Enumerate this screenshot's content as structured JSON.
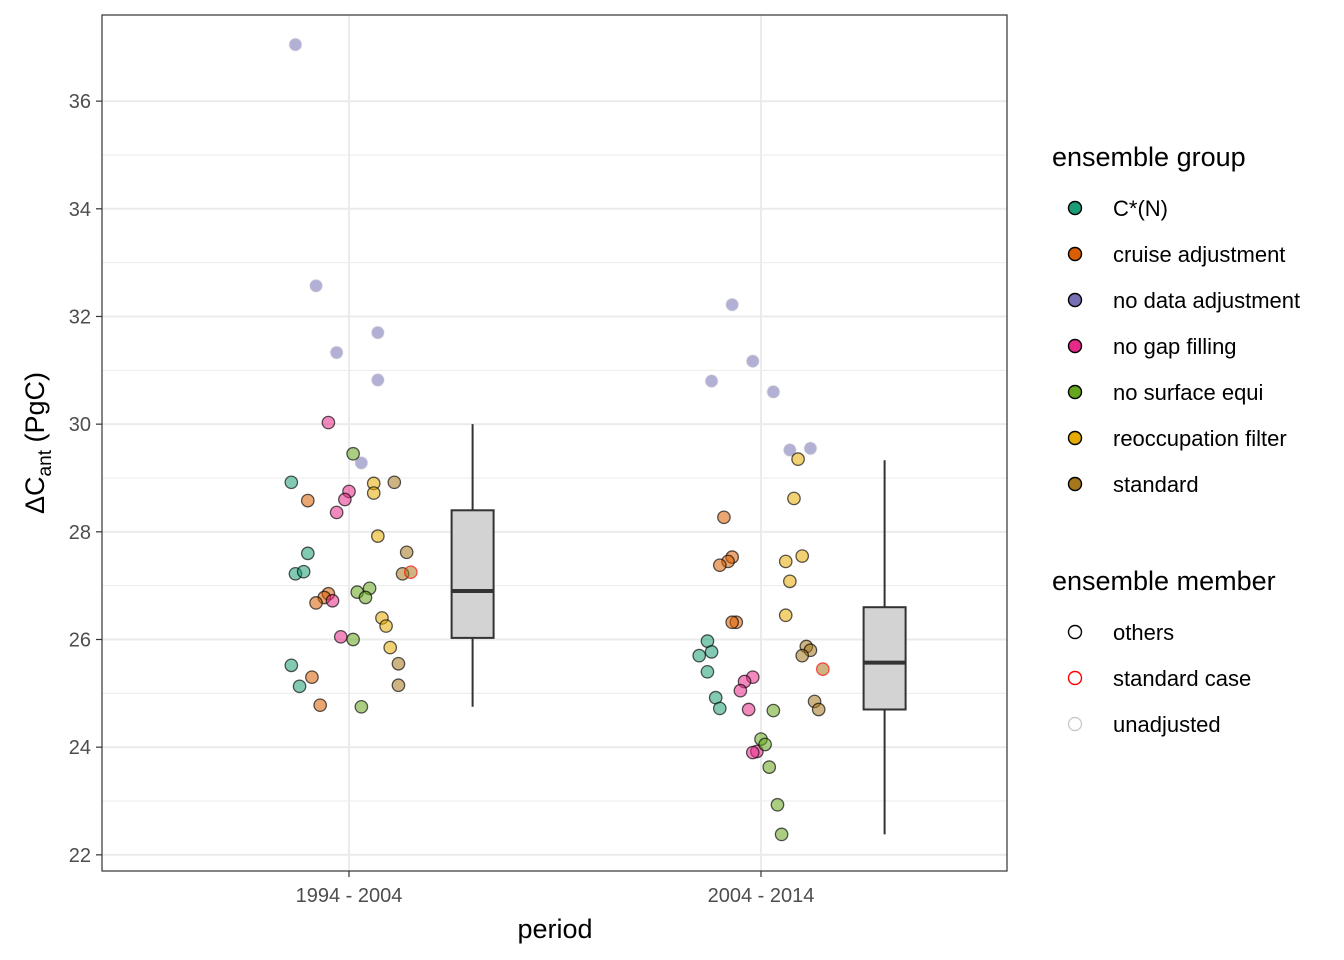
{
  "chart_data": {
    "type": "scatter",
    "xlabel": "period",
    "ylabel": {
      "prefix": "ΔC",
      "subscript": "ant",
      "suffix": " (PgC)"
    },
    "ylim": [
      21.7,
      37.6
    ],
    "yticks": [
      22,
      24,
      26,
      28,
      30,
      32,
      34,
      36
    ],
    "categories": [
      "1994 - 2004",
      "2004 - 2014"
    ],
    "legend_group": {
      "title": "ensemble group",
      "items": [
        {
          "key": "cstar",
          "label": "C*(N)",
          "color": "#1b9e77"
        },
        {
          "key": "cruise",
          "label": "cruise adjustment",
          "color": "#d95f02"
        },
        {
          "key": "nodata",
          "label": "no data adjustment",
          "color": "#7570b3"
        },
        {
          "key": "nogap",
          "label": "no gap filling",
          "color": "#e7298a"
        },
        {
          "key": "nosurf",
          "label": "no surface equi",
          "color": "#66a61e"
        },
        {
          "key": "reocc",
          "label": "reoccupation filter",
          "color": "#e6ab02"
        },
        {
          "key": "standard",
          "label": "standard",
          "color": "#a6761d"
        }
      ]
    },
    "legend_member": {
      "title": "ensemble member",
      "items": [
        {
          "key": "others",
          "label": "others",
          "color": "#000000"
        },
        {
          "key": "standard_case",
          "label": "standard case",
          "color": "#ff0000"
        },
        {
          "key": "unadjusted",
          "label": "unadjusted",
          "color": "#cccccc"
        }
      ]
    },
    "boxplots": [
      {
        "period": "1994 - 2004",
        "min": 24.75,
        "q1": 26.03,
        "median": 26.9,
        "q3": 28.4,
        "max": 30.0
      },
      {
        "period": "2004 - 2014",
        "min": 22.38,
        "q1": 24.7,
        "median": 25.57,
        "q3": 26.6,
        "max": 29.33
      }
    ],
    "points": [
      {
        "period": 0,
        "jitter": -0.14,
        "y": 28.92,
        "group": "cstar",
        "member": "others"
      },
      {
        "period": 0,
        "jitter": -0.1,
        "y": 27.6,
        "group": "cstar",
        "member": "others"
      },
      {
        "period": 0,
        "jitter": -0.13,
        "y": 27.22,
        "group": "cstar",
        "member": "others"
      },
      {
        "period": 0,
        "jitter": -0.11,
        "y": 27.26,
        "group": "cstar",
        "member": "others"
      },
      {
        "period": 0,
        "jitter": -0.14,
        "y": 25.52,
        "group": "cstar",
        "member": "others"
      },
      {
        "period": 0,
        "jitter": -0.12,
        "y": 25.13,
        "group": "cstar",
        "member": "others"
      },
      {
        "period": 0,
        "jitter": -0.1,
        "y": 28.58,
        "group": "cruise",
        "member": "others"
      },
      {
        "period": 0,
        "jitter": -0.05,
        "y": 26.85,
        "group": "cruise",
        "member": "others"
      },
      {
        "period": 0,
        "jitter": -0.06,
        "y": 26.78,
        "group": "cruise",
        "member": "others"
      },
      {
        "period": 0,
        "jitter": -0.08,
        "y": 26.68,
        "group": "cruise",
        "member": "others"
      },
      {
        "period": 0,
        "jitter": -0.09,
        "y": 25.3,
        "group": "cruise",
        "member": "others"
      },
      {
        "period": 0,
        "jitter": -0.07,
        "y": 24.78,
        "group": "cruise",
        "member": "others"
      },
      {
        "period": 0,
        "jitter": -0.13,
        "y": 37.05,
        "group": "nodata",
        "member": "unadjusted"
      },
      {
        "period": 0,
        "jitter": -0.08,
        "y": 32.57,
        "group": "nodata",
        "member": "unadjusted"
      },
      {
        "period": 0,
        "jitter": -0.03,
        "y": 31.33,
        "group": "nodata",
        "member": "unadjusted"
      },
      {
        "period": 0,
        "jitter": 0.07,
        "y": 31.7,
        "group": "nodata",
        "member": "unadjusted"
      },
      {
        "period": 0,
        "jitter": 0.07,
        "y": 30.82,
        "group": "nodata",
        "member": "unadjusted"
      },
      {
        "period": 0,
        "jitter": 0.03,
        "y": 29.28,
        "group": "nodata",
        "member": "unadjusted"
      },
      {
        "period": 0,
        "jitter": -0.05,
        "y": 30.03,
        "group": "nogap",
        "member": "others"
      },
      {
        "period": 0,
        "jitter": 0.0,
        "y": 28.75,
        "group": "nogap",
        "member": "others"
      },
      {
        "period": 0,
        "jitter": -0.01,
        "y": 28.6,
        "group": "nogap",
        "member": "others"
      },
      {
        "period": 0,
        "jitter": -0.03,
        "y": 28.36,
        "group": "nogap",
        "member": "others"
      },
      {
        "period": 0,
        "jitter": -0.04,
        "y": 26.72,
        "group": "nogap",
        "member": "others"
      },
      {
        "period": 0,
        "jitter": -0.02,
        "y": 26.05,
        "group": "nogap",
        "member": "others"
      },
      {
        "period": 0,
        "jitter": 0.01,
        "y": 29.45,
        "group": "nosurf",
        "member": "others"
      },
      {
        "period": 0,
        "jitter": 0.02,
        "y": 26.88,
        "group": "nosurf",
        "member": "others"
      },
      {
        "period": 0,
        "jitter": 0.05,
        "y": 26.95,
        "group": "nosurf",
        "member": "others"
      },
      {
        "period": 0,
        "jitter": 0.04,
        "y": 26.78,
        "group": "nosurf",
        "member": "others"
      },
      {
        "period": 0,
        "jitter": 0.01,
        "y": 26.0,
        "group": "nosurf",
        "member": "others"
      },
      {
        "period": 0,
        "jitter": 0.03,
        "y": 24.75,
        "group": "nosurf",
        "member": "others"
      },
      {
        "period": 0,
        "jitter": 0.06,
        "y": 28.9,
        "group": "reocc",
        "member": "others"
      },
      {
        "period": 0,
        "jitter": 0.06,
        "y": 28.72,
        "group": "reocc",
        "member": "others"
      },
      {
        "period": 0,
        "jitter": 0.07,
        "y": 27.92,
        "group": "reocc",
        "member": "others"
      },
      {
        "period": 0,
        "jitter": 0.08,
        "y": 26.4,
        "group": "reocc",
        "member": "others"
      },
      {
        "period": 0,
        "jitter": 0.09,
        "y": 26.25,
        "group": "reocc",
        "member": "others"
      },
      {
        "period": 0,
        "jitter": 0.1,
        "y": 25.85,
        "group": "reocc",
        "member": "others"
      },
      {
        "period": 0,
        "jitter": 0.11,
        "y": 28.92,
        "group": "standard",
        "member": "others"
      },
      {
        "period": 0,
        "jitter": 0.14,
        "y": 27.62,
        "group": "standard",
        "member": "others"
      },
      {
        "period": 0,
        "jitter": 0.13,
        "y": 27.22,
        "group": "standard",
        "member": "others"
      },
      {
        "period": 0,
        "jitter": 0.15,
        "y": 27.25,
        "group": "standard",
        "member": "standard_case"
      },
      {
        "period": 0,
        "jitter": 0.12,
        "y": 25.55,
        "group": "standard",
        "member": "others"
      },
      {
        "period": 0,
        "jitter": 0.12,
        "y": 25.15,
        "group": "standard",
        "member": "others"
      },
      {
        "period": 1,
        "jitter": -0.13,
        "y": 25.97,
        "group": "cstar",
        "member": "others"
      },
      {
        "period": 1,
        "jitter": -0.12,
        "y": 25.77,
        "group": "cstar",
        "member": "others"
      },
      {
        "period": 1,
        "jitter": -0.15,
        "y": 25.7,
        "group": "cstar",
        "member": "others"
      },
      {
        "period": 1,
        "jitter": -0.13,
        "y": 25.4,
        "group": "cstar",
        "member": "others"
      },
      {
        "period": 1,
        "jitter": -0.11,
        "y": 24.92,
        "group": "cstar",
        "member": "others"
      },
      {
        "period": 1,
        "jitter": -0.1,
        "y": 24.72,
        "group": "cstar",
        "member": "others"
      },
      {
        "period": 1,
        "jitter": -0.09,
        "y": 28.27,
        "group": "cruise",
        "member": "others"
      },
      {
        "period": 1,
        "jitter": -0.07,
        "y": 27.53,
        "group": "cruise",
        "member": "others"
      },
      {
        "period": 1,
        "jitter": -0.08,
        "y": 27.45,
        "group": "cruise",
        "member": "others"
      },
      {
        "period": 1,
        "jitter": -0.1,
        "y": 27.38,
        "group": "cruise",
        "member": "others"
      },
      {
        "period": 1,
        "jitter": -0.06,
        "y": 26.32,
        "group": "cruise",
        "member": "others"
      },
      {
        "period": 1,
        "jitter": -0.07,
        "y": 26.32,
        "group": "cruise",
        "member": "others"
      },
      {
        "period": 1,
        "jitter": -0.12,
        "y": 30.8,
        "group": "nodata",
        "member": "unadjusted"
      },
      {
        "period": 1,
        "jitter": -0.07,
        "y": 32.22,
        "group": "nodata",
        "member": "unadjusted"
      },
      {
        "period": 1,
        "jitter": -0.02,
        "y": 31.17,
        "group": "nodata",
        "member": "unadjusted"
      },
      {
        "period": 1,
        "jitter": 0.03,
        "y": 30.6,
        "group": "nodata",
        "member": "unadjusted"
      },
      {
        "period": 1,
        "jitter": 0.07,
        "y": 29.52,
        "group": "nodata",
        "member": "unadjusted"
      },
      {
        "period": 1,
        "jitter": 0.12,
        "y": 29.55,
        "group": "nodata",
        "member": "unadjusted"
      },
      {
        "period": 1,
        "jitter": -0.02,
        "y": 25.3,
        "group": "nogap",
        "member": "others"
      },
      {
        "period": 1,
        "jitter": -0.04,
        "y": 25.22,
        "group": "nogap",
        "member": "others"
      },
      {
        "period": 1,
        "jitter": -0.05,
        "y": 25.05,
        "group": "nogap",
        "member": "others"
      },
      {
        "period": 1,
        "jitter": -0.03,
        "y": 24.7,
        "group": "nogap",
        "member": "others"
      },
      {
        "period": 1,
        "jitter": -0.01,
        "y": 23.92,
        "group": "nogap",
        "member": "others"
      },
      {
        "period": 1,
        "jitter": -0.02,
        "y": 23.9,
        "group": "nogap",
        "member": "others"
      },
      {
        "period": 1,
        "jitter": 0.03,
        "y": 24.68,
        "group": "nosurf",
        "member": "others"
      },
      {
        "period": 1,
        "jitter": 0.0,
        "y": 24.15,
        "group": "nosurf",
        "member": "others"
      },
      {
        "period": 1,
        "jitter": 0.01,
        "y": 24.05,
        "group": "nosurf",
        "member": "others"
      },
      {
        "period": 1,
        "jitter": 0.02,
        "y": 23.63,
        "group": "nosurf",
        "member": "others"
      },
      {
        "period": 1,
        "jitter": 0.04,
        "y": 22.93,
        "group": "nosurf",
        "member": "others"
      },
      {
        "period": 1,
        "jitter": 0.05,
        "y": 22.38,
        "group": "nosurf",
        "member": "others"
      },
      {
        "period": 1,
        "jitter": 0.09,
        "y": 29.35,
        "group": "reocc",
        "member": "others"
      },
      {
        "period": 1,
        "jitter": 0.08,
        "y": 28.62,
        "group": "reocc",
        "member": "others"
      },
      {
        "period": 1,
        "jitter": 0.1,
        "y": 27.55,
        "group": "reocc",
        "member": "others"
      },
      {
        "period": 1,
        "jitter": 0.06,
        "y": 27.45,
        "group": "reocc",
        "member": "others"
      },
      {
        "period": 1,
        "jitter": 0.07,
        "y": 27.08,
        "group": "reocc",
        "member": "others"
      },
      {
        "period": 1,
        "jitter": 0.06,
        "y": 26.45,
        "group": "reocc",
        "member": "others"
      },
      {
        "period": 1,
        "jitter": 0.11,
        "y": 25.87,
        "group": "standard",
        "member": "others"
      },
      {
        "period": 1,
        "jitter": 0.12,
        "y": 25.8,
        "group": "standard",
        "member": "others"
      },
      {
        "period": 1,
        "jitter": 0.1,
        "y": 25.7,
        "group": "standard",
        "member": "others"
      },
      {
        "period": 1,
        "jitter": 0.15,
        "y": 25.45,
        "group": "standard",
        "member": "standard_case"
      },
      {
        "period": 1,
        "jitter": 0.13,
        "y": 24.85,
        "group": "standard",
        "member": "others"
      },
      {
        "period": 1,
        "jitter": 0.14,
        "y": 24.7,
        "group": "standard",
        "member": "others"
      }
    ]
  }
}
